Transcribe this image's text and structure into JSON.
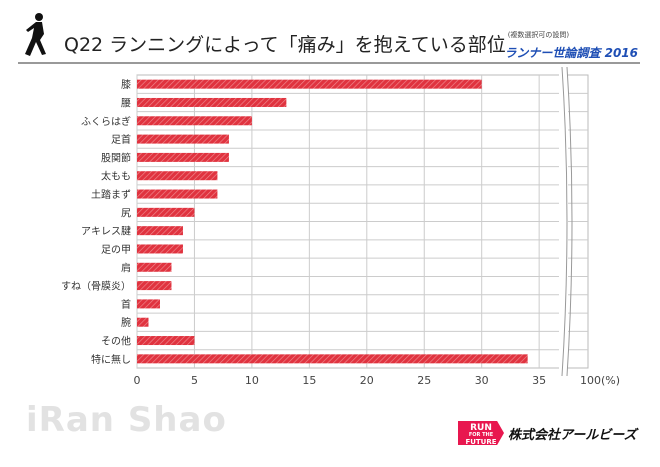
{
  "header": {
    "title": "Q22 ランニングによって「痛み」を抱えている部位",
    "note": "(複数選択可の設問)",
    "survey": "ランナー世論調査 2016"
  },
  "footer": {
    "watermark": "iRan Shao",
    "logo_text": "RUN FOR THE FUTURE",
    "company": "株式会社アールビーズ"
  },
  "chart_data": {
    "type": "bar",
    "orientation": "horizontal",
    "categories": [
      "膝",
      "腰",
      "ふくらはぎ",
      "足首",
      "股関節",
      "太もも",
      "土踏まず",
      "尻",
      "アキレス腱",
      "足の甲",
      "肩",
      "すね（骨膜炎）",
      "首",
      "腕",
      "その他",
      "特に無し"
    ],
    "values": [
      30,
      13,
      10,
      8,
      8,
      7,
      7,
      5,
      4,
      4,
      3,
      3,
      2,
      1,
      5,
      34
    ],
    "xticks": [
      "0",
      "5",
      "10",
      "15",
      "20",
      "25",
      "30",
      "35",
      "100(%)"
    ],
    "xlim": [
      0,
      100
    ],
    "axis_break": [
      35,
      100
    ],
    "grid": true,
    "bar_color": "#e0333f"
  }
}
